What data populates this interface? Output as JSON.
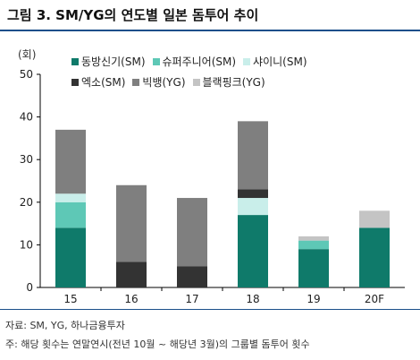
{
  "title": "그림 3. SM/YG의 연도별 일본 돔투어 추이",
  "unit_label": "(회)",
  "source": "자료: SM, YG, 하나금융투자",
  "note": "주: 해당 횟수는 연말연시(전년 10월 ~ 해당년 3월)의 그룹별 돔투어 횟수",
  "chart_data": {
    "type": "bar",
    "stacked": true,
    "categories": [
      "15",
      "16",
      "17",
      "18",
      "19",
      "20F"
    ],
    "ylim": [
      0,
      50
    ],
    "yticks": [
      0,
      10,
      20,
      30,
      40,
      50
    ],
    "grid": false,
    "legend_position": "top-left",
    "series": [
      {
        "name": "동방신기(SM)",
        "color": "#0f7a6a",
        "values": [
          14,
          0,
          0,
          17,
          9,
          14
        ]
      },
      {
        "name": "슈퍼주니어(SM)",
        "color": "#5ec8b6",
        "values": [
          6,
          0,
          0,
          0,
          2,
          0
        ]
      },
      {
        "name": "샤이니(SM)",
        "color": "#c9eeea",
        "values": [
          2,
          0,
          0,
          4,
          0,
          0
        ]
      },
      {
        "name": "엑소(SM)",
        "color": "#333333",
        "values": [
          0,
          6,
          5,
          2,
          0,
          0
        ]
      },
      {
        "name": "빅뱅(YG)",
        "color": "#7f7f7f",
        "values": [
          15,
          18,
          16,
          16,
          0,
          0
        ]
      },
      {
        "name": "블랙핑크(YG)",
        "color": "#c4c4c4",
        "values": [
          0,
          0,
          0,
          0,
          1,
          4
        ]
      }
    ]
  }
}
